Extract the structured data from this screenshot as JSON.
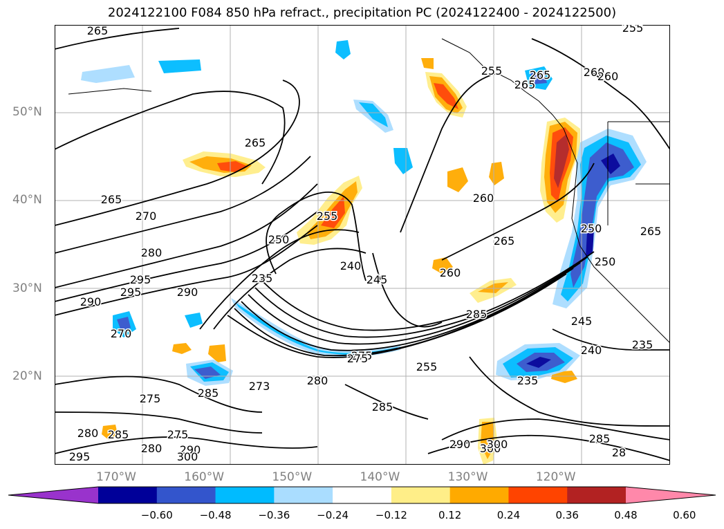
{
  "title": "2024122100 F084 850 hPa refract., precipitation PC (2024122400 - 2024122500)",
  "map": {
    "lat_labels": [
      {
        "text": "50°N",
        "lat": 50
      },
      {
        "text": "40°N",
        "lat": 40
      },
      {
        "text": "30°N",
        "lat": 30
      },
      {
        "text": "20°N",
        "lat": 20
      }
    ],
    "lon_labels": [
      {
        "text": "170°W",
        "lon": -170
      },
      {
        "text": "160°W",
        "lon": -160
      },
      {
        "text": "150°W",
        "lon": -150
      },
      {
        "text": "140°W",
        "lon": -140
      },
      {
        "text": "130°W",
        "lon": -130
      },
      {
        "text": "120°W",
        "lon": -120
      }
    ],
    "contour_labels": [
      "265",
      "265",
      "265",
      "270",
      "280",
      "295",
      "295",
      "290",
      "290",
      "270",
      "275",
      "285",
      "275",
      "285",
      "280",
      "285",
      "275",
      "280",
      "290",
      "300",
      "295",
      "235",
      "250",
      "255",
      "240",
      "245",
      "260",
      "265",
      "260",
      "265",
      "255",
      "265",
      "260",
      "255",
      "260",
      "285",
      "250",
      "245",
      "240",
      "235",
      "235",
      "255",
      "275",
      "280",
      "285",
      "290",
      "300",
      "300",
      "265",
      "28",
      "250",
      "273"
    ],
    "gridlines": true
  },
  "colorbar": {
    "colors": [
      "#9933cc",
      "#000099",
      "#3355cc",
      "#00bbff",
      "#aaddff",
      "#ffffff",
      "#ffee88",
      "#ffaa00",
      "#ff4400",
      "#b22222",
      "#ff88aa"
    ],
    "ticks": [
      "−0.60",
      "−0.48",
      "−0.36",
      "−0.24",
      "−0.12",
      "0.12",
      "0.24",
      "0.36",
      "0.48",
      "0.60"
    ]
  }
}
